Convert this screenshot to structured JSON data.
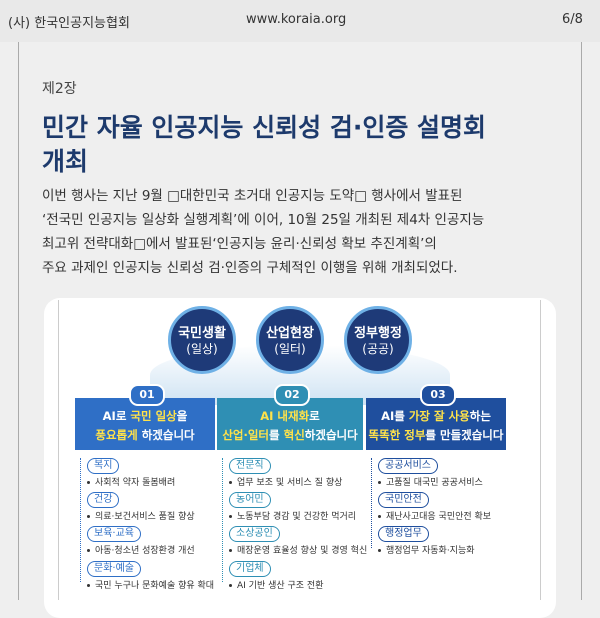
{
  "header": {
    "org": "(사) 한국인공지능협회",
    "url": "www.koraia.org",
    "page": "6/8"
  },
  "chapter": "제2장",
  "title": [
    "민간 자율 인공지능 신뢰성 검·인증 설명회",
    "개최"
  ],
  "body": [
    "이번 행사는 지난 9월 □대한민국 초거대 인공지능 도약□ 행사에서 발표된",
    "‘전국민 인공지능 일상화 실행계획’에 이어, 10월 25일 개최된 제4차 인공지능",
    "최고위 전략대화□에서 발표된‘인공지능 윤리·신뢰성 확보 추진계획’의",
    "주요 과제인 인공지능 신뢰성 검·인증의 구체적인 이행을 위해 개최되었다."
  ],
  "figure": {
    "circles": [
      {
        "label": "국민생활",
        "sub": "(일상)"
      },
      {
        "label": "산업현장",
        "sub": "(일터)"
      },
      {
        "label": "정부행정",
        "sub": "(공공)"
      }
    ],
    "columns": [
      {
        "number": "01",
        "headline": [
          [
            "AI로 ",
            "국민 일상",
            "을"
          ],
          [
            "풍요롭게",
            " 하겠습니다"
          ]
        ],
        "items": [
          {
            "tag": "복지",
            "desc": "사회적 약자 돌봄배려"
          },
          {
            "tag": "건강",
            "desc": "의료·보건서비스 품질 향상"
          },
          {
            "tag": "보육·교육",
            "desc": "아동·청소년 성장환경 개선"
          },
          {
            "tag": "문화·예술",
            "desc": "국민 누구나 문화예술 향유 확대"
          }
        ]
      },
      {
        "number": "02",
        "headline": [
          [
            "AI 내재화",
            "로"
          ],
          [
            "산업·일터",
            "를 ",
            "혁신",
            "하겠습니다"
          ]
        ],
        "items": [
          {
            "tag": "전문직",
            "desc": "업무 보조 및 서비스 질 향상"
          },
          {
            "tag": "농어민",
            "desc": "노동부담 경감 및 건강한 먹거리"
          },
          {
            "tag": "소상공인",
            "desc": "매장운영 효율성 향상 및 경영 혁신"
          },
          {
            "tag": "기업체",
            "desc": "AI 기반 생산 구조 전환"
          }
        ]
      },
      {
        "number": "03",
        "headline": [
          [
            "AI를 ",
            "가장 잘 사용",
            "하는"
          ],
          [
            "똑똑한 정부",
            "를 만들겠습니다"
          ]
        ],
        "items": [
          {
            "tag": "공공서비스",
            "desc": "고품질 대국민 공공서비스"
          },
          {
            "tag": "국민안전",
            "desc": "재난사고대응 국민안전 확보"
          },
          {
            "tag": "행정업무",
            "desc": "행정업무 자동화·지능화"
          }
        ]
      }
    ]
  }
}
